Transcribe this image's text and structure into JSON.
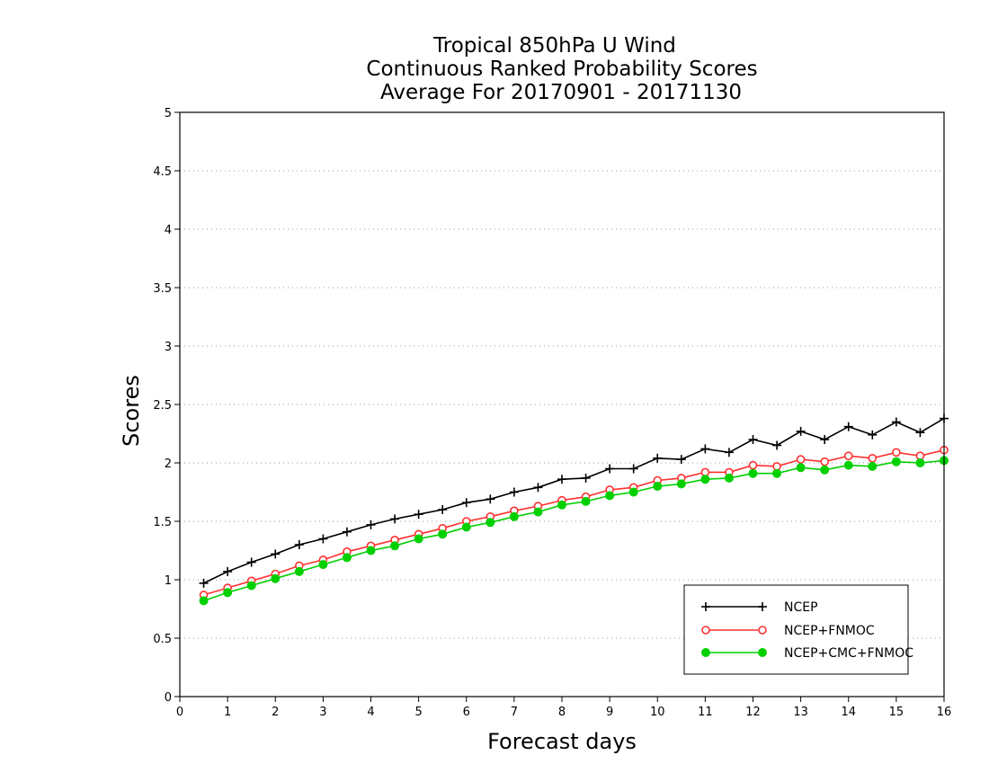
{
  "chart_data": {
    "type": "line",
    "title": [
      "Tropical 850hPa U Wind",
      "Continuous Ranked Probability Scores",
      "Average For 20170901 - 20171130"
    ],
    "xlabel": "Forecast days",
    "ylabel": "Scores",
    "xlim": [
      0,
      16
    ],
    "ylim": [
      0,
      5
    ],
    "xticks": [
      "0",
      "1",
      "2",
      "3",
      "4",
      "5",
      "6",
      "7",
      "8",
      "9",
      "10",
      "11",
      "12",
      "13",
      "14",
      "15",
      "16"
    ],
    "yticks": [
      "0",
      "0.5",
      "1",
      "1.5",
      "2",
      "2.5",
      "3",
      "3.5",
      "4",
      "4.5",
      "5"
    ],
    "ytick_values": [
      0,
      0.5,
      1,
      1.5,
      2,
      2.5,
      3,
      3.5,
      4,
      4.5,
      5
    ],
    "grid": true,
    "legend_position": "bottom-right",
    "x": [
      0.5,
      1,
      1.5,
      2,
      2.5,
      3,
      3.5,
      4,
      4.5,
      5,
      5.5,
      6,
      6.5,
      7,
      7.5,
      8,
      8.5,
      9,
      9.5,
      10,
      10.5,
      11,
      11.5,
      12,
      12.5,
      13,
      13.5,
      14,
      14.5,
      15,
      15.5,
      16
    ],
    "series": [
      {
        "name": "NCEP",
        "color": "#000000",
        "marker": "plus",
        "values": [
          0.97,
          1.07,
          1.15,
          1.22,
          1.3,
          1.35,
          1.41,
          1.47,
          1.52,
          1.56,
          1.6,
          1.66,
          1.69,
          1.75,
          1.79,
          1.86,
          1.87,
          1.95,
          1.95,
          2.04,
          2.03,
          2.12,
          2.09,
          2.2,
          2.15,
          2.27,
          2.2,
          2.31,
          2.24,
          2.35,
          2.26,
          2.38
        ]
      },
      {
        "name": "NCEP+FNMOC",
        "color": "#ff3030",
        "marker": "open-circle",
        "values": [
          0.87,
          0.93,
          0.99,
          1.05,
          1.12,
          1.17,
          1.24,
          1.29,
          1.34,
          1.39,
          1.44,
          1.5,
          1.54,
          1.59,
          1.63,
          1.68,
          1.71,
          1.77,
          1.79,
          1.85,
          1.87,
          1.92,
          1.92,
          1.98,
          1.97,
          2.03,
          2.01,
          2.06,
          2.04,
          2.09,
          2.06,
          2.11
        ]
      },
      {
        "name": "NCEP+CMC+FNMOC",
        "color": "#00d000",
        "marker": "filled-circle",
        "values": [
          0.82,
          0.89,
          0.95,
          1.01,
          1.07,
          1.13,
          1.19,
          1.25,
          1.29,
          1.35,
          1.39,
          1.45,
          1.49,
          1.54,
          1.58,
          1.64,
          1.67,
          1.72,
          1.75,
          1.8,
          1.82,
          1.86,
          1.87,
          1.91,
          1.91,
          1.96,
          1.94,
          1.98,
          1.97,
          2.01,
          2.0,
          2.02
        ]
      }
    ]
  }
}
